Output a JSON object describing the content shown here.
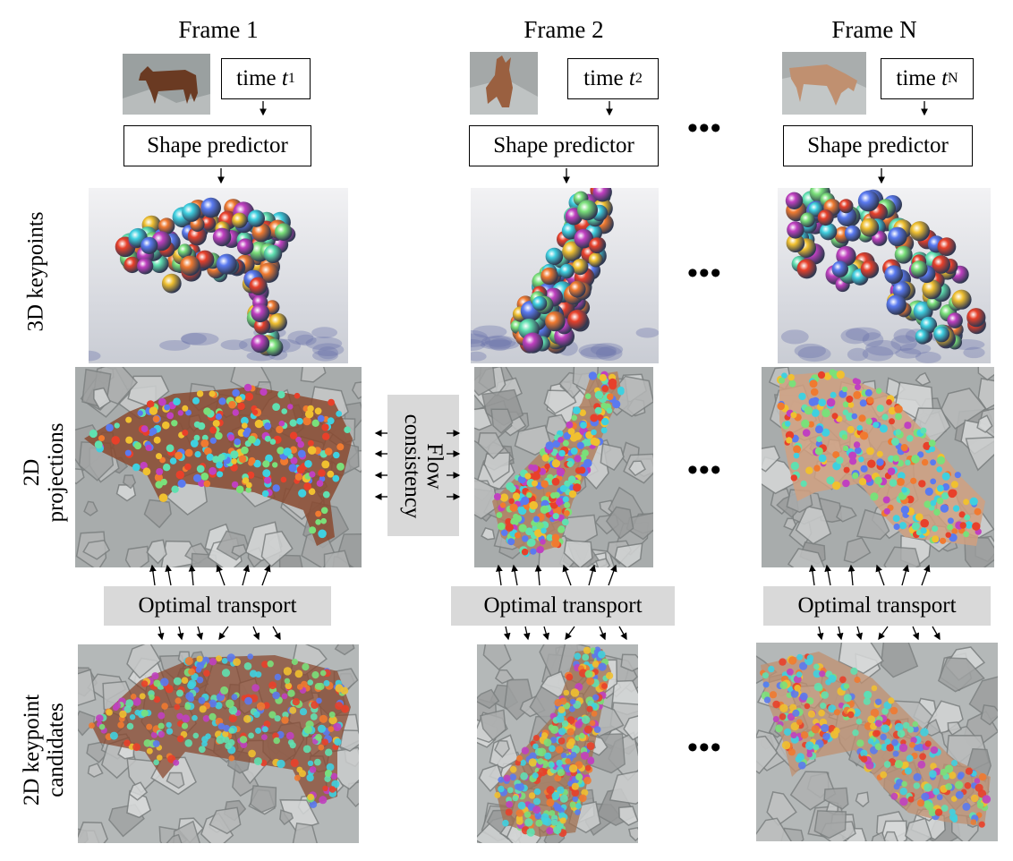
{
  "frames": [
    {
      "title": "Frame 1",
      "time_label": "time",
      "time_sub": "1",
      "predictor": "Shape predictor"
    },
    {
      "title": "Frame 2",
      "time_label": "time",
      "time_sub": "2",
      "predictor": "Shape predictor"
    },
    {
      "title": "Frame N",
      "time_label": "time",
      "time_sub": "N",
      "predictor": "Shape predictor"
    }
  ],
  "time_var": "t",
  "row_labels": {
    "keypoints3d": "3D keypoints",
    "projections_line1": "2D",
    "projections_line2": "projections",
    "candidates_line1": "2D  keypoint",
    "candidates_line2": "candidates"
  },
  "flow_line1": "Flow",
  "flow_line2": "consistency",
  "optimal_transport": "Optimal transport",
  "ellipsis": "•••",
  "colors": {
    "grey_box": "#d9d9d9",
    "keypoint_palette": [
      "#e8402a",
      "#f0c030",
      "#3fd0e0",
      "#7ae07a",
      "#5a7af0",
      "#c040c0",
      "#f07a30",
      "#60e0b0"
    ]
  }
}
